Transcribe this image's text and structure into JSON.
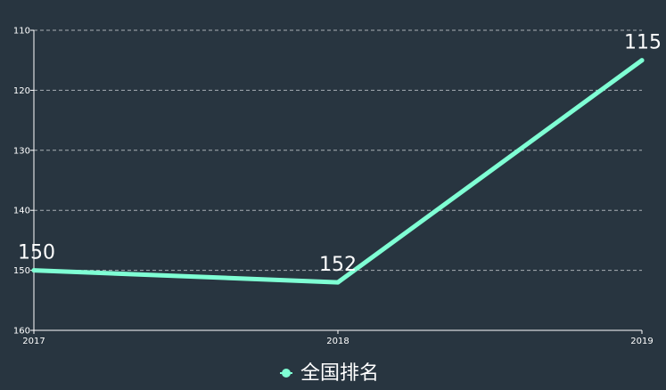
{
  "colors": {
    "background": "#283540",
    "series_line": "#7fffd4",
    "axis": "#ffffff",
    "grid": "#c8cdd2"
  },
  "legend": {
    "position": "bottom-center",
    "label": "全国排名"
  },
  "chart_data": {
    "type": "line",
    "x": [
      "2017",
      "2018",
      "2019"
    ],
    "series": [
      {
        "name": "全国排名",
        "values": [
          150,
          152,
          115
        ]
      }
    ],
    "y_axis": {
      "inverted": true,
      "min": 110,
      "max": 160,
      "ticks": [
        110,
        120,
        130,
        140,
        150,
        160
      ]
    },
    "grid": {
      "horizontal": true,
      "style": "dashed"
    },
    "data_labels": [
      "150",
      "152",
      "115"
    ],
    "title": "",
    "xlabel": "",
    "ylabel": ""
  }
}
